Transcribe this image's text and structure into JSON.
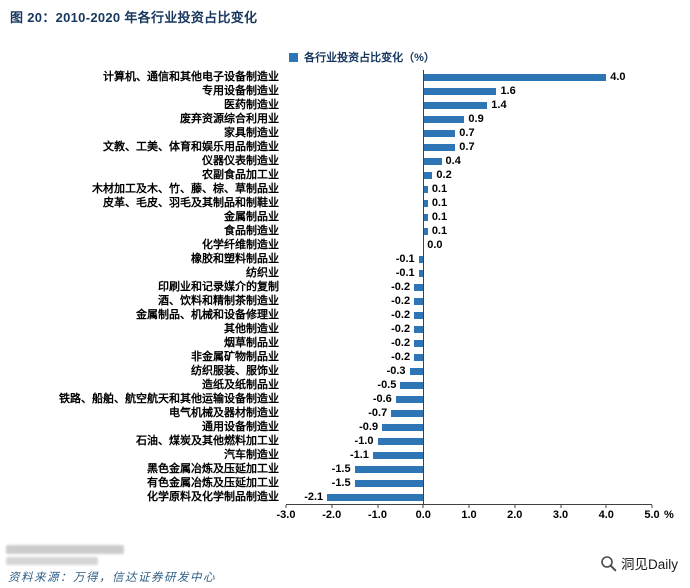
{
  "title": "图 20：2010-2020 年各行业投资占比变化",
  "legend": {
    "label": "各行业投资占比变化（%）",
    "marker_color": "#2E75B6"
  },
  "chart_data": {
    "type": "bar",
    "orientation": "horizontal",
    "title": "各行业投资占比变化（%）",
    "legend_position": "top",
    "grid": false,
    "bar_color": "#2E75B6",
    "value_labels": true,
    "xlim": [
      -3.0,
      5.0
    ],
    "x_tick_labels": [
      "-3.0",
      "-2.0",
      "-1.0",
      "0.0",
      "1.0",
      "2.0",
      "3.0",
      "4.0",
      "5.0"
    ],
    "x_unit": "%",
    "categories": [
      "计算机、通信和其他电子设备制造业",
      "专用设备制造业",
      "医药制造业",
      "废弃资源综合利用业",
      "家具制造业",
      "文教、工美、体育和娱乐用品制造业",
      "仪器仪表制造业",
      "农副食品加工业",
      "木材加工及木、竹、藤、棕、草制品业",
      "皮革、毛皮、羽毛及其制品和制鞋业",
      "金属制品业",
      "食品制造业",
      "化学纤维制造业",
      "橡胶和塑料制品业",
      "纺织业",
      "印刷业和记录媒介的复制",
      "酒、饮料和精制茶制造业",
      "金属制品、机械和设备修理业",
      "其他制造业",
      "烟草制品业",
      "非金属矿物制品业",
      "纺织服装、服饰业",
      "造纸及纸制品业",
      "铁路、船舶、航空航天和其他运输设备制造业",
      "电气机械及器材制造业",
      "通用设备制造业",
      "石油、煤炭及其他燃料加工业",
      "汽车制造业",
      "黑色金属冶炼及压延加工业",
      "有色金属冶炼及压延加工业",
      "化学原料及化学制品制造业"
    ],
    "values": [
      4.0,
      1.6,
      1.4,
      0.9,
      0.7,
      0.7,
      0.4,
      0.2,
      0.1,
      0.1,
      0.1,
      0.1,
      0.0,
      -0.1,
      -0.1,
      -0.2,
      -0.2,
      -0.2,
      -0.2,
      -0.2,
      -0.2,
      -0.3,
      -0.5,
      -0.6,
      -0.7,
      -0.9,
      -1.0,
      -1.1,
      -1.5,
      -1.5,
      -2.1
    ]
  },
  "footer": {
    "source": "资料来源：万得，信达证券研发中心",
    "brand": "洞见Daily"
  }
}
